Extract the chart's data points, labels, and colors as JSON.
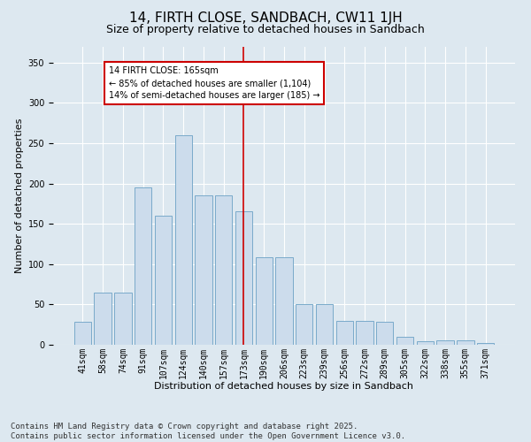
{
  "title": "14, FIRTH CLOSE, SANDBACH, CW11 1JH",
  "subtitle": "Size of property relative to detached houses in Sandbach",
  "xlabel": "Distribution of detached houses by size in Sandbach",
  "ylabel": "Number of detached properties",
  "footer_line1": "Contains HM Land Registry data © Crown copyright and database right 2025.",
  "footer_line2": "Contains public sector information licensed under the Open Government Licence v3.0.",
  "categories": [
    "41sqm",
    "58sqm",
    "74sqm",
    "91sqm",
    "107sqm",
    "124sqm",
    "140sqm",
    "157sqm",
    "173sqm",
    "190sqm",
    "206sqm",
    "223sqm",
    "239sqm",
    "256sqm",
    "272sqm",
    "289sqm",
    "305sqm",
    "322sqm",
    "338sqm",
    "355sqm",
    "371sqm"
  ],
  "values": [
    28,
    65,
    65,
    195,
    160,
    260,
    185,
    185,
    165,
    108,
    108,
    50,
    50,
    30,
    30,
    28,
    10,
    4,
    5,
    6,
    2
  ],
  "bar_color": "#ccdcec",
  "bar_edgecolor": "#7aaaca",
  "annotation_text_line1": "14 FIRTH CLOSE: 165sqm",
  "annotation_text_line2": "← 85% of detached houses are smaller (1,104)",
  "annotation_text_line3": "14% of semi-detached houses are larger (185) →",
  "annotation_box_edgecolor": "#cc0000",
  "annotation_text_color": "#000000",
  "vline_color": "#cc0000",
  "vline_x_index": 8.5,
  "ylim": [
    0,
    370
  ],
  "yticks": [
    0,
    50,
    100,
    150,
    200,
    250,
    300,
    350
  ],
  "background_color": "#dde8f0",
  "plot_background_color": "#dde8f0",
  "grid_color": "#ffffff",
  "title_fontsize": 11,
  "subtitle_fontsize": 9,
  "axis_label_fontsize": 8,
  "tick_fontsize": 7,
  "footer_fontsize": 6.5
}
